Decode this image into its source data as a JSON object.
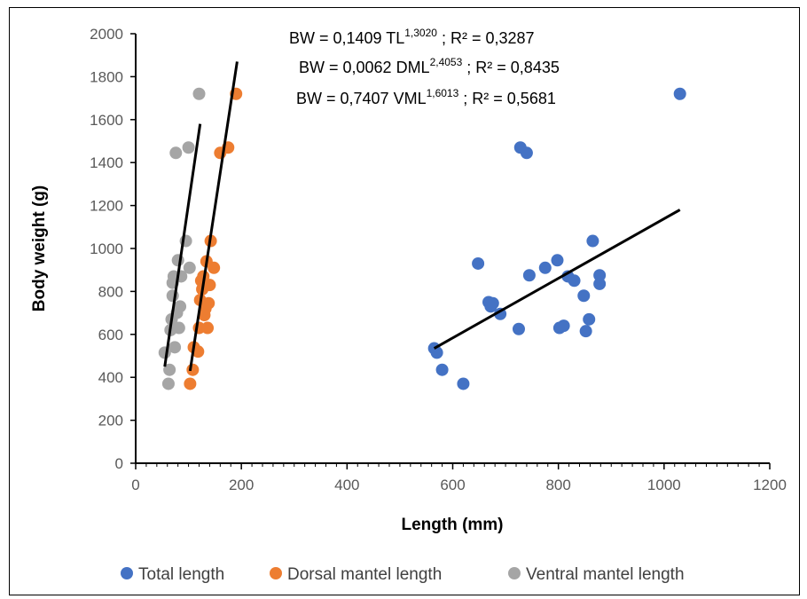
{
  "chart_data": {
    "type": "scatter",
    "xlabel": "Length (mm)",
    "ylabel": "Body weight (g)",
    "xlim": [
      0,
      1200
    ],
    "ylim": [
      0,
      2000
    ],
    "x_ticks": [
      "0",
      "200",
      "400",
      "600",
      "800",
      "1000",
      "1200"
    ],
    "y_ticks": [
      "0",
      "200",
      "400",
      "600",
      "800",
      "1000",
      "1200",
      "1400",
      "1600",
      "1800",
      "2000"
    ],
    "grid": false,
    "legend_position": "bottom",
    "equations": [
      {
        "lhs": "BW = 0,1409 TL",
        "exp": "1,3020",
        "rhs": " ; R² = 0,3287"
      },
      {
        "lhs": "BW = 0,0062 DML",
        "exp": "2,4053",
        "rhs": "  ; R² = 0,8435"
      },
      {
        "lhs": "BW = 0,7407 VML",
        "exp": "1,6013",
        "rhs": " ; R² = 0,5681"
      }
    ],
    "series": [
      {
        "name": "Total length",
        "color": "#4472C4",
        "points": [
          [
            565,
            535
          ],
          [
            570,
            515
          ],
          [
            580,
            435
          ],
          [
            620,
            370
          ],
          [
            648,
            930
          ],
          [
            668,
            750
          ],
          [
            672,
            730
          ],
          [
            676,
            745
          ],
          [
            690,
            695
          ],
          [
            725,
            625
          ],
          [
            728,
            1470
          ],
          [
            740,
            1445
          ],
          [
            745,
            875
          ],
          [
            775,
            910
          ],
          [
            798,
            945
          ],
          [
            802,
            630
          ],
          [
            810,
            640
          ],
          [
            818,
            870
          ],
          [
            830,
            850
          ],
          [
            848,
            780
          ],
          [
            852,
            615
          ],
          [
            858,
            670
          ],
          [
            865,
            1035
          ],
          [
            878,
            875
          ],
          [
            878,
            835
          ],
          [
            1030,
            1720
          ]
        ],
        "trendline": [
          [
            565,
            535
          ],
          [
            1030,
            1180
          ]
        ]
      },
      {
        "name": "Dorsal mantel length",
        "color": "#ED7D31",
        "points": [
          [
            103,
            370
          ],
          [
            108,
            435
          ],
          [
            110,
            540
          ],
          [
            118,
            520
          ],
          [
            120,
            630
          ],
          [
            122,
            760
          ],
          [
            124,
            850
          ],
          [
            126,
            810
          ],
          [
            128,
            870
          ],
          [
            130,
            690
          ],
          [
            132,
            720
          ],
          [
            134,
            940
          ],
          [
            136,
            630
          ],
          [
            138,
            745
          ],
          [
            140,
            830
          ],
          [
            142,
            1035
          ],
          [
            148,
            910
          ],
          [
            160,
            1445
          ],
          [
            175,
            1470
          ],
          [
            190,
            1720
          ]
        ],
        "trendline": [
          [
            103,
            430
          ],
          [
            192,
            1870
          ]
        ]
      },
      {
        "name": "Ventral mantel length",
        "color": "#A5A5A5",
        "points": [
          [
            55,
            515
          ],
          [
            62,
            370
          ],
          [
            64,
            435
          ],
          [
            66,
            620
          ],
          [
            68,
            670
          ],
          [
            70,
            780
          ],
          [
            70,
            840
          ],
          [
            72,
            870
          ],
          [
            74,
            540
          ],
          [
            76,
            1445
          ],
          [
            78,
            700
          ],
          [
            80,
            945
          ],
          [
            82,
            630
          ],
          [
            84,
            730
          ],
          [
            86,
            870
          ],
          [
            95,
            1035
          ],
          [
            100,
            1470
          ],
          [
            102,
            910
          ],
          [
            120,
            1720
          ]
        ],
        "trendline": [
          [
            55,
            450
          ],
          [
            122,
            1580
          ]
        ]
      }
    ]
  }
}
